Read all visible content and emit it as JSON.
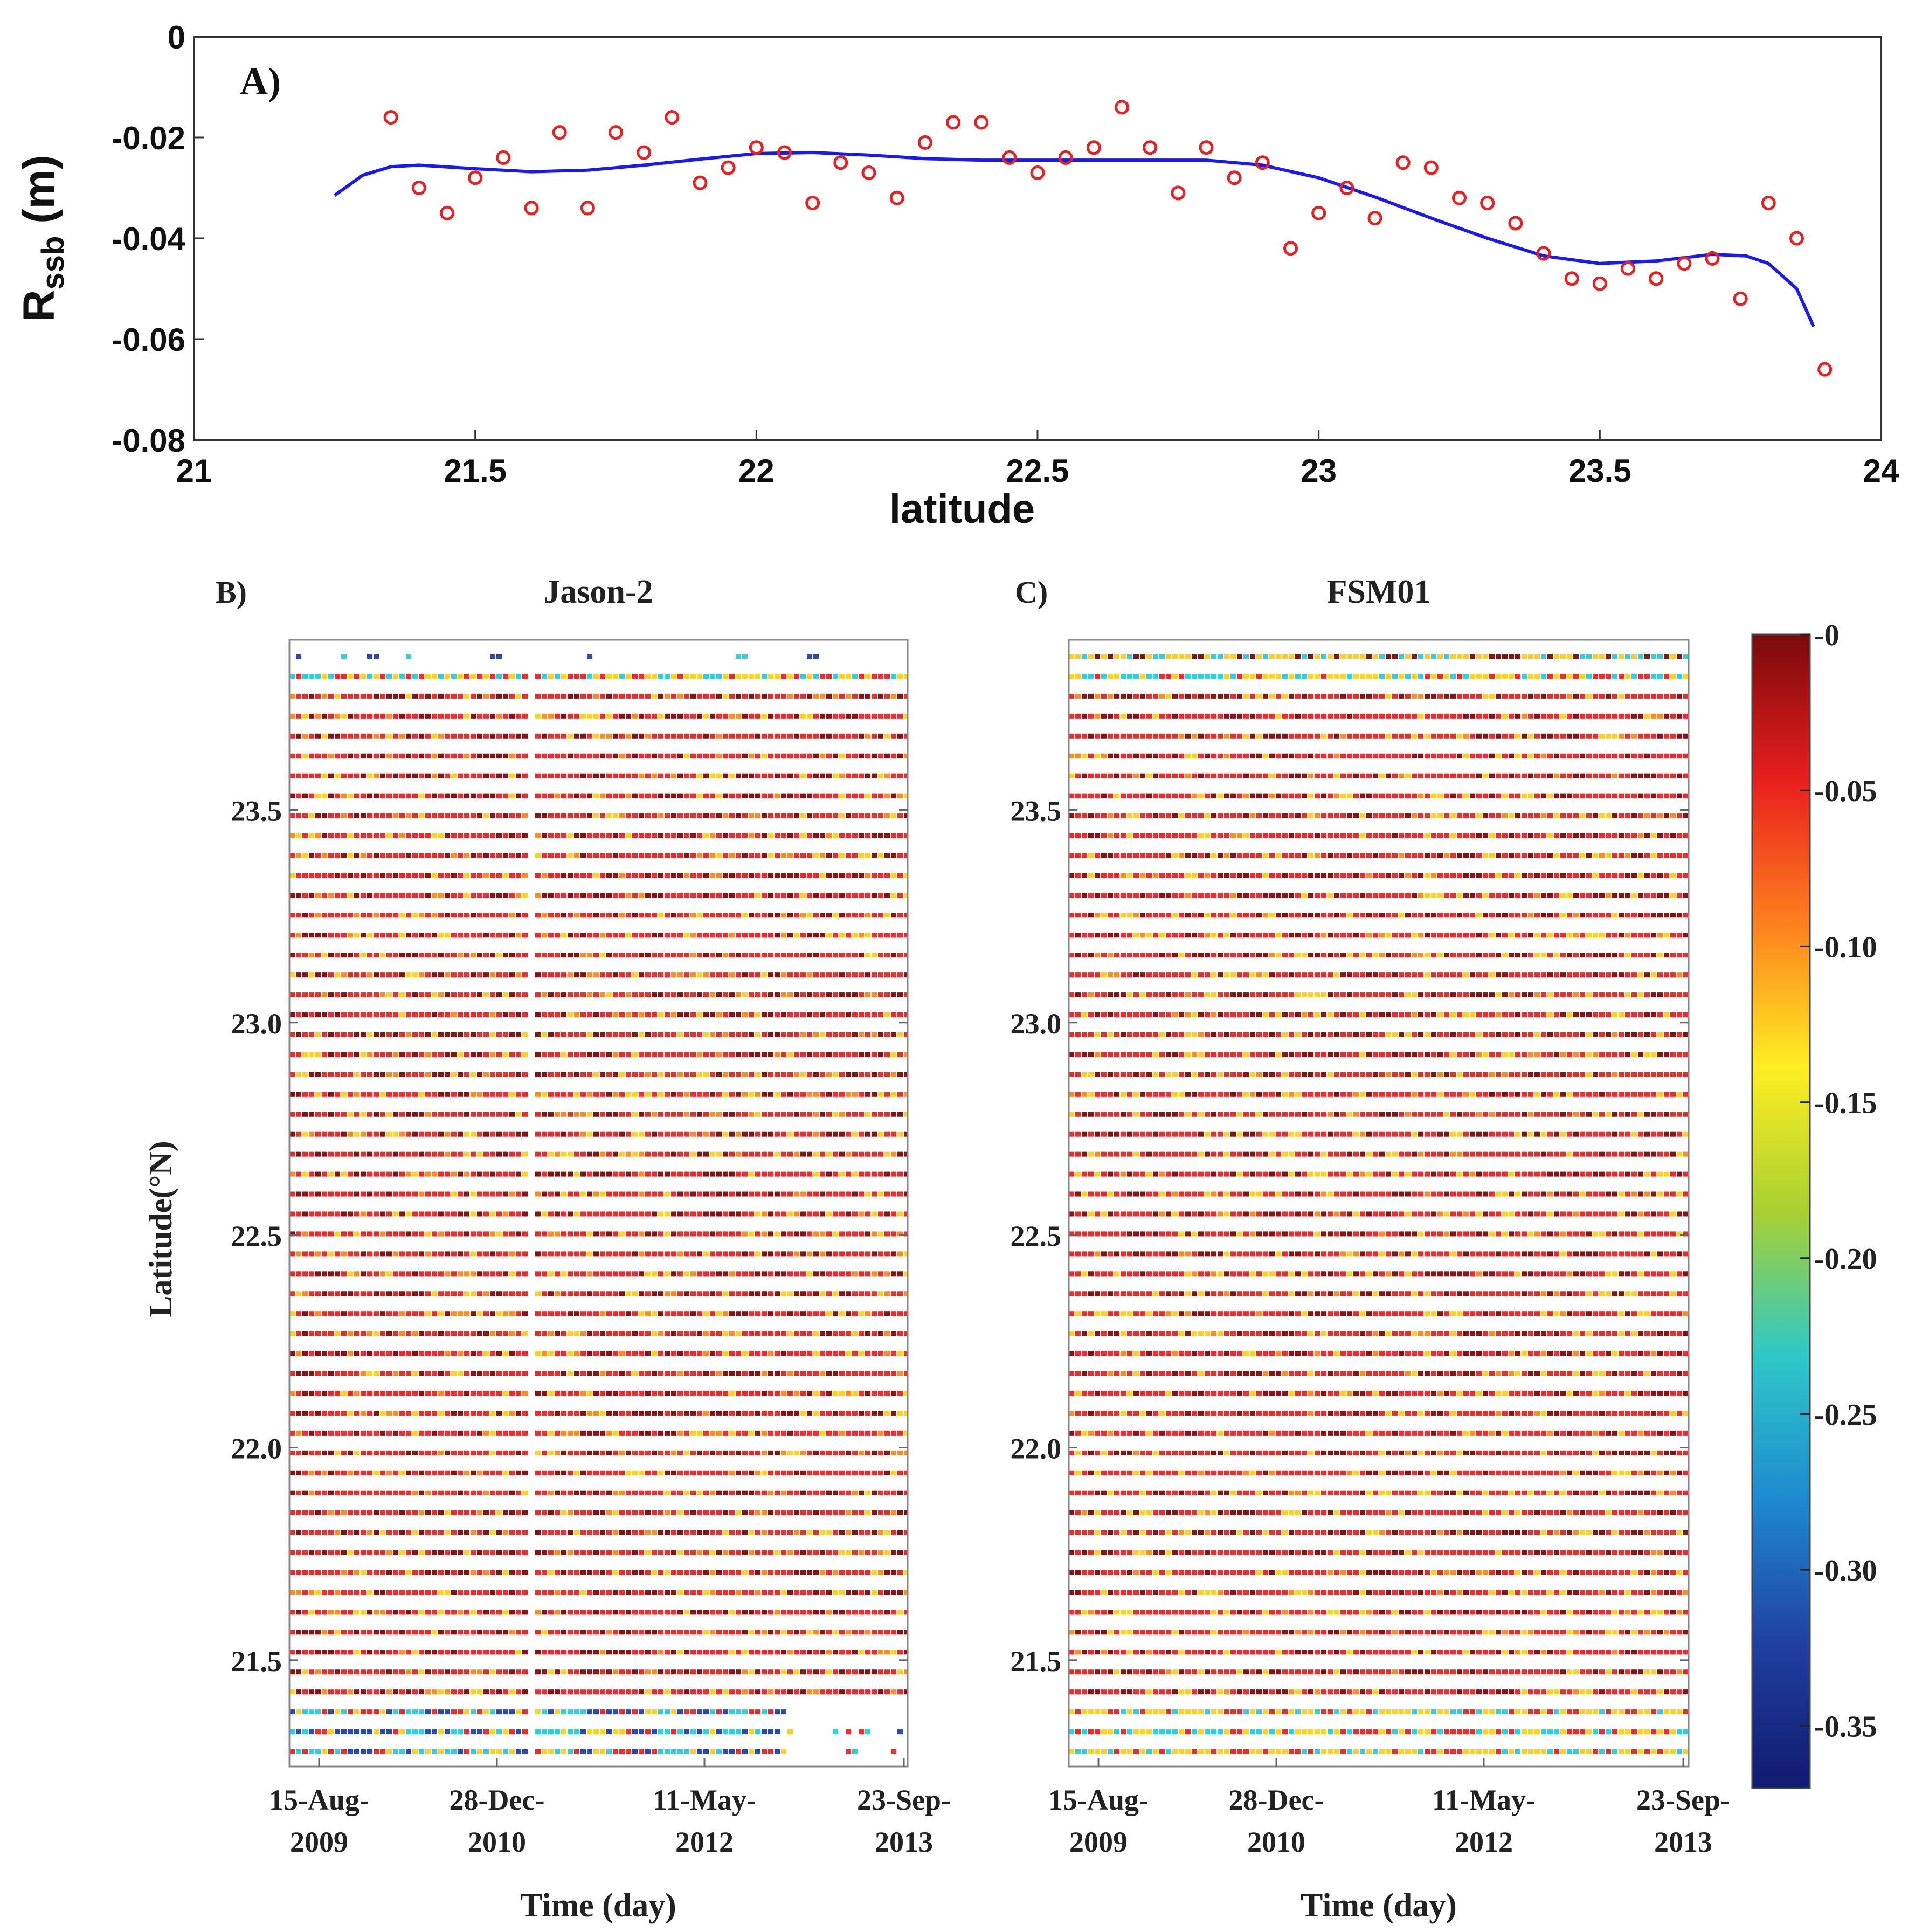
{
  "panel_a": {
    "label": "A)",
    "xlabel": "latitude",
    "ylabel_main": "R",
    "ylabel_sub": "ssb",
    "ylabel_unit": "(m)",
    "xticks": [
      "21",
      "21.5",
      "22",
      "22.5",
      "23",
      "23.5",
      "24"
    ],
    "yticks": [
      "0",
      "-0.02",
      "-0.04",
      "-0.06",
      "-0.08"
    ]
  },
  "panel_b": {
    "label": "B)",
    "title": "Jason-2"
  },
  "panel_c": {
    "label": "C)",
    "title": "FSM01"
  },
  "shared": {
    "ylabel": "Latitude(°N)",
    "xlabel": "Time (day)",
    "ytick_labels": [
      "23.5",
      "23.0",
      "22.5",
      "22.0",
      "21.5"
    ],
    "xtick_labels": [
      {
        "line1": "15-Aug-",
        "line2": "2009"
      },
      {
        "line1": "28-Dec-",
        "line2": "2010"
      },
      {
        "line1": "11-May-",
        "line2": "2012"
      },
      {
        "line1": "23-Sep-",
        "line2": "2013"
      }
    ]
  },
  "colorbar": {
    "tick_labels": [
      "-0",
      "-0.05",
      "-0.10",
      "-0.15",
      "-0.20",
      "-0.25",
      "-0.30",
      "-0.35"
    ],
    "tick_values": [
      0,
      -0.05,
      -0.1,
      -0.15,
      -0.2,
      -0.25,
      -0.3,
      -0.35
    ],
    "range": [
      -0.37,
      0
    ],
    "colors": [
      "#7a0a0a",
      "#e81e1e",
      "#ff7f1e",
      "#ffee22",
      "#a8d030",
      "#2ec8c8",
      "#1e8ad0",
      "#2040a0",
      "#101a70"
    ]
  },
  "colors": {
    "points": "#e82020",
    "fit": "#1a1aee",
    "red": "#ee2a2a",
    "dark": "#8a1212",
    "yellow": "#ffd21e",
    "orange": "#ff8c1e",
    "cyan": "#2ed0e0",
    "blue": "#2a48b8"
  },
  "chart_data": [
    {
      "type": "scatter",
      "title": "A)",
      "xlabel": "latitude",
      "ylabel": "R_ssb (m)",
      "xlim": [
        21,
        24
      ],
      "ylim": [
        -0.08,
        0
      ],
      "series": [
        {
          "name": "R_ssb points",
          "x": [
            21.35,
            21.4,
            21.45,
            21.5,
            21.55,
            21.6,
            21.65,
            21.7,
            21.75,
            21.8,
            21.85,
            21.9,
            21.95,
            22.0,
            22.05,
            22.1,
            22.15,
            22.2,
            22.25,
            22.3,
            22.35,
            22.4,
            22.45,
            22.5,
            22.55,
            22.6,
            22.65,
            22.7,
            22.75,
            22.8,
            22.85,
            22.9,
            22.95,
            23.0,
            23.05,
            23.1,
            23.15,
            23.2,
            23.25,
            23.3,
            23.35,
            23.4,
            23.45,
            23.5,
            23.55,
            23.6,
            23.65,
            23.7,
            23.75,
            23.8,
            23.85,
            23.9
          ],
          "y": [
            -0.016,
            -0.03,
            -0.035,
            -0.028,
            -0.024,
            -0.034,
            -0.019,
            -0.034,
            -0.019,
            -0.023,
            -0.016,
            -0.029,
            -0.026,
            -0.022,
            -0.023,
            -0.033,
            -0.025,
            -0.027,
            -0.032,
            -0.021,
            -0.017,
            -0.017,
            -0.024,
            -0.027,
            -0.024,
            -0.022,
            -0.014,
            -0.022,
            -0.031,
            -0.022,
            -0.028,
            -0.025,
            -0.042,
            -0.035,
            -0.03,
            -0.036,
            -0.025,
            -0.026,
            -0.032,
            -0.033,
            -0.037,
            -0.043,
            -0.048,
            -0.049,
            -0.046,
            -0.048,
            -0.045,
            -0.044,
            -0.052,
            -0.033,
            -0.04,
            -0.066
          ]
        },
        {
          "name": "fit",
          "type": "line",
          "x": [
            21.25,
            21.3,
            21.35,
            21.4,
            21.5,
            21.6,
            21.7,
            21.8,
            21.9,
            22.0,
            22.1,
            22.2,
            22.3,
            22.4,
            22.5,
            22.6,
            22.7,
            22.8,
            22.9,
            23.0,
            23.1,
            23.2,
            23.3,
            23.4,
            23.5,
            23.6,
            23.7,
            23.76,
            23.8,
            23.85,
            23.88
          ],
          "y": [
            -0.0315,
            -0.0275,
            -0.0258,
            -0.0255,
            -0.0262,
            -0.0268,
            -0.0265,
            -0.0255,
            -0.0243,
            -0.0232,
            -0.023,
            -0.0235,
            -0.0242,
            -0.0245,
            -0.0245,
            -0.0245,
            -0.0245,
            -0.0245,
            -0.0255,
            -0.028,
            -0.0318,
            -0.036,
            -0.04,
            -0.0435,
            -0.045,
            -0.0445,
            -0.0432,
            -0.0435,
            -0.045,
            -0.05,
            -0.0575
          ]
        }
      ]
    },
    {
      "type": "heatmap",
      "title": "Jason-2",
      "xlabel": "Time (day)",
      "ylabel": "Latitude(°N)",
      "x_ticks": [
        "15-Aug-2009",
        "28-Dec-2010",
        "11-May-2012",
        "23-Sep-2013"
      ],
      "ylim": [
        21.25,
        23.9
      ],
      "colorbar_range": [
        -0.37,
        0
      ]
    },
    {
      "type": "heatmap",
      "title": "FSM01",
      "xlabel": "Time (day)",
      "ylabel": "Latitude(°N)",
      "x_ticks": [
        "15-Aug-2009",
        "28-Dec-2010",
        "11-May-2012",
        "23-Sep-2013"
      ],
      "ylim": [
        21.25,
        23.9
      ],
      "colorbar_range": [
        -0.37,
        0
      ]
    }
  ]
}
